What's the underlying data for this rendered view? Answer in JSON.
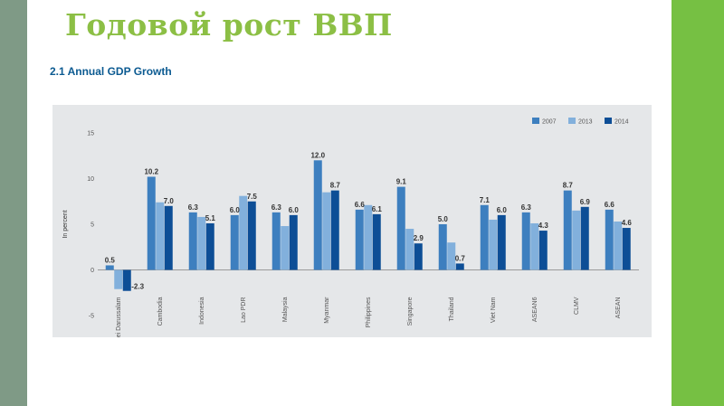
{
  "slide": {
    "title": "Годовой рост ВВП",
    "chart_heading": "2.1 Annual GDP Growth"
  },
  "colors": {
    "left_bar": "#7f9a86",
    "right_bar": "#76c043",
    "title": "#8cbf45",
    "heading": "#0b5a91",
    "panel": "#e5e7e9"
  },
  "chart_data": {
    "type": "bar",
    "ylabel": "In percent",
    "ylim": [
      -5,
      15
    ],
    "yticks": [
      -5,
      0,
      5,
      10,
      15
    ],
    "legend_position": "top-right",
    "categories": [
      "Brunei Darussalam",
      "Cambodia",
      "Indonesia",
      "Lao PDR",
      "Malaysia",
      "Myanmar",
      "Philippines",
      "Singapore",
      "Thailand",
      "Viet Nam",
      "ASEAN6",
      "CLMV",
      "ASEAN"
    ],
    "series": [
      {
        "name": "2007",
        "color": "#3d7fbf",
        "values": [
          0.5,
          10.2,
          6.3,
          6.0,
          6.3,
          12.0,
          6.6,
          9.1,
          5.0,
          7.1,
          6.3,
          8.7,
          6.6
        ]
      },
      {
        "name": "2013",
        "color": "#82b0dc",
        "values": [
          -2.1,
          7.4,
          5.8,
          8.1,
          4.8,
          8.5,
          7.1,
          4.5,
          3.0,
          5.5,
          5.1,
          6.5,
          5.3
        ]
      },
      {
        "name": "2014",
        "color": "#0d4e96",
        "values": [
          -2.3,
          7.0,
          5.1,
          7.5,
          6.0,
          8.7,
          6.1,
          2.9,
          0.7,
          6.0,
          4.3,
          6.9,
          4.6
        ]
      }
    ],
    "data_labels": [
      {
        "category": 0,
        "series": 0,
        "text": "0.5"
      },
      {
        "category": 0,
        "series": 2,
        "text": "-2.3"
      },
      {
        "category": 1,
        "series": 0,
        "text": "10.2"
      },
      {
        "category": 1,
        "series": 2,
        "text": "7.0"
      },
      {
        "category": 2,
        "series": 0,
        "text": "6.3"
      },
      {
        "category": 2,
        "series": 2,
        "text": "5.1"
      },
      {
        "category": 3,
        "series": 0,
        "text": "6.0"
      },
      {
        "category": 3,
        "series": 2,
        "text": "7.5"
      },
      {
        "category": 4,
        "series": 0,
        "text": "6.3"
      },
      {
        "category": 4,
        "series": 2,
        "text": "6.0"
      },
      {
        "category": 5,
        "series": 0,
        "text": "12.0"
      },
      {
        "category": 5,
        "series": 2,
        "text": "8.7"
      },
      {
        "category": 6,
        "series": 0,
        "text": "6.6"
      },
      {
        "category": 6,
        "series": 2,
        "text": "6.1"
      },
      {
        "category": 7,
        "series": 0,
        "text": "9.1"
      },
      {
        "category": 7,
        "series": 2,
        "text": "2.9"
      },
      {
        "category": 8,
        "series": 0,
        "text": "5.0"
      },
      {
        "category": 8,
        "series": 2,
        "text": "0.7"
      },
      {
        "category": 9,
        "series": 0,
        "text": "7.1"
      },
      {
        "category": 9,
        "series": 2,
        "text": "6.0"
      },
      {
        "category": 10,
        "series": 0,
        "text": "6.3"
      },
      {
        "category": 10,
        "series": 2,
        "text": "4.3"
      },
      {
        "category": 11,
        "series": 0,
        "text": "8.7"
      },
      {
        "category": 11,
        "series": 2,
        "text": "6.9"
      },
      {
        "category": 12,
        "series": 0,
        "text": "6.6"
      },
      {
        "category": 12,
        "series": 2,
        "text": "4.6"
      }
    ]
  }
}
